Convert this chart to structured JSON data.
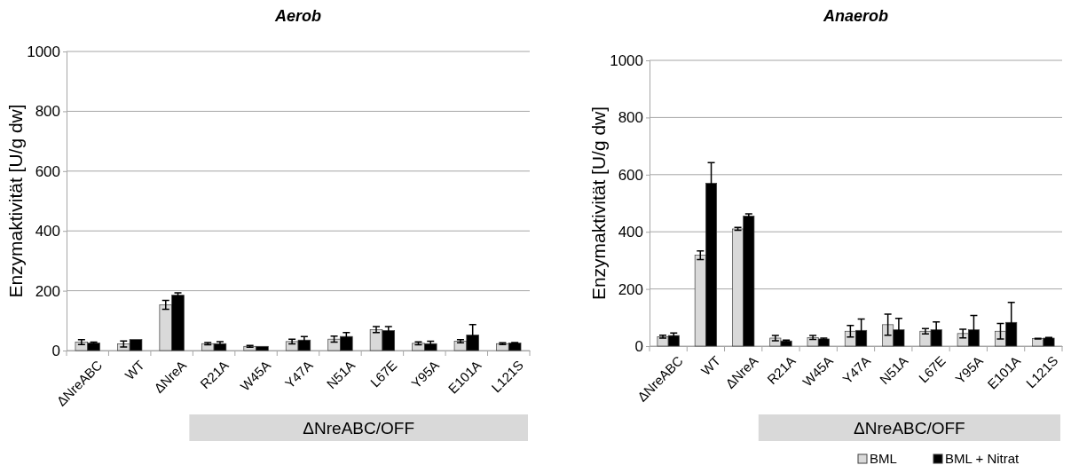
{
  "chart_data": [
    {
      "type": "bar",
      "title": "Aerob",
      "ylabel": "Enzymaktivität [U/g dw]",
      "categories": [
        "ΔNreABC",
        "WT",
        "ΔNreA",
        "R21A",
        "W45A",
        "Y47A",
        "N51A",
        "L67E",
        "Y95A",
        "E101A",
        "L121S"
      ],
      "series": [
        {
          "color": "#d9d9d9",
          "values": [
            28,
            22,
            153,
            23,
            14,
            30,
            38,
            70,
            24,
            31,
            23
          ],
          "errors": [
            8,
            10,
            15,
            4,
            3,
            8,
            10,
            10,
            5,
            5,
            3
          ]
        },
        {
          "color": "#000000",
          "values": [
            25,
            37,
            185,
            23,
            14,
            35,
            47,
            67,
            23,
            52,
            25
          ],
          "errors": [
            3,
            null,
            8,
            7,
            null,
            12,
            13,
            13,
            8,
            35,
            2
          ]
        }
      ],
      "ylim": [
        0,
        1000
      ],
      "yticks": [
        0,
        200,
        400,
        600,
        800,
        1000
      ],
      "grid": "y",
      "legend": false,
      "annotations": [
        "ΔNreABC/OFF"
      ]
    },
    {
      "type": "bar",
      "title": "Anaerob",
      "ylabel": "Enzymaktivität [U/g dw]",
      "categories": [
        "ΔNreABC",
        "WT",
        "ΔNreA",
        "R21A",
        "W45A",
        "Y47A",
        "N51A",
        "L67E",
        "Y95A",
        "E101A",
        "L121S"
      ],
      "series": [
        {
          "name": "BML",
          "color": "#d9d9d9",
          "values": [
            33,
            318,
            410,
            28,
            30,
            52,
            75,
            52,
            44,
            52,
            26
          ],
          "errors": [
            5,
            15,
            5,
            9,
            7,
            20,
            37,
            9,
            15,
            27,
            1
          ]
        },
        {
          "name": "BML + Nitrat",
          "color": "#000000",
          "values": [
            37,
            570,
            455,
            18,
            25,
            55,
            57,
            57,
            57,
            83,
            28
          ],
          "errors": [
            9,
            72,
            8,
            3,
            3,
            40,
            40,
            28,
            50,
            70,
            2
          ]
        }
      ],
      "ylim": [
        0,
        1000
      ],
      "yticks": [
        0,
        200,
        400,
        600,
        800,
        1000
      ],
      "grid": "y",
      "legend": "bottom right",
      "annotations": [
        "ΔNreABC/OFF"
      ]
    }
  ]
}
